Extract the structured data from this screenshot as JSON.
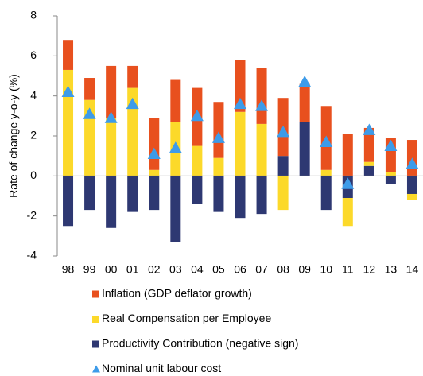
{
  "chart_data": {
    "type": "bar",
    "stacked": true,
    "y_label": "Rate of change y-o-y (%)",
    "categories": [
      "98",
      "99",
      "00",
      "01",
      "02",
      "03",
      "04",
      "05",
      "06",
      "07",
      "08",
      "09",
      "10",
      "11",
      "12",
      "13",
      "14"
    ],
    "series": [
      {
        "name": "Inflation (GDP deflator growth)",
        "color": "#e8501e",
        "values": [
          1.5,
          1.1,
          2.6,
          1.1,
          2.6,
          2.1,
          2.9,
          2.8,
          2.6,
          2.8,
          2.9,
          1.9,
          3.2,
          2.1,
          1.7,
          1.7,
          1.8
        ]
      },
      {
        "name": "Real Compensation per Employee",
        "color": "#fcd92a",
        "values": [
          5.3,
          3.8,
          2.9,
          4.4,
          0.3,
          2.7,
          1.5,
          0.9,
          3.2,
          2.6,
          -1.7,
          0,
          0.3,
          -1.4,
          0.2,
          0.2,
          -0.3
        ]
      },
      {
        "name": "Productivity Contribution (negative sign)",
        "color": "#2e3872",
        "values": [
          -2.5,
          -1.7,
          -2.6,
          -1.8,
          -1.7,
          -3.3,
          -1.4,
          -1.8,
          -2.1,
          -1.9,
          1.0,
          2.7,
          -1.7,
          -1.1,
          0.5,
          -0.4,
          -0.9
        ]
      },
      {
        "name": "Nominal unit labour cost",
        "type": "scatter",
        "marker": "triangle",
        "color": "#3d9be9",
        "values": [
          4.2,
          3.1,
          2.9,
          3.6,
          1.1,
          1.4,
          3.0,
          1.9,
          3.6,
          3.5,
          2.2,
          4.7,
          1.7,
          -0.4,
          2.3,
          1.5,
          0.6
        ]
      }
    ],
    "ylim": [
      -4,
      8
    ],
    "yticks": [
      -4,
      -2,
      0,
      2,
      4,
      6,
      8
    ],
    "grid": false
  }
}
